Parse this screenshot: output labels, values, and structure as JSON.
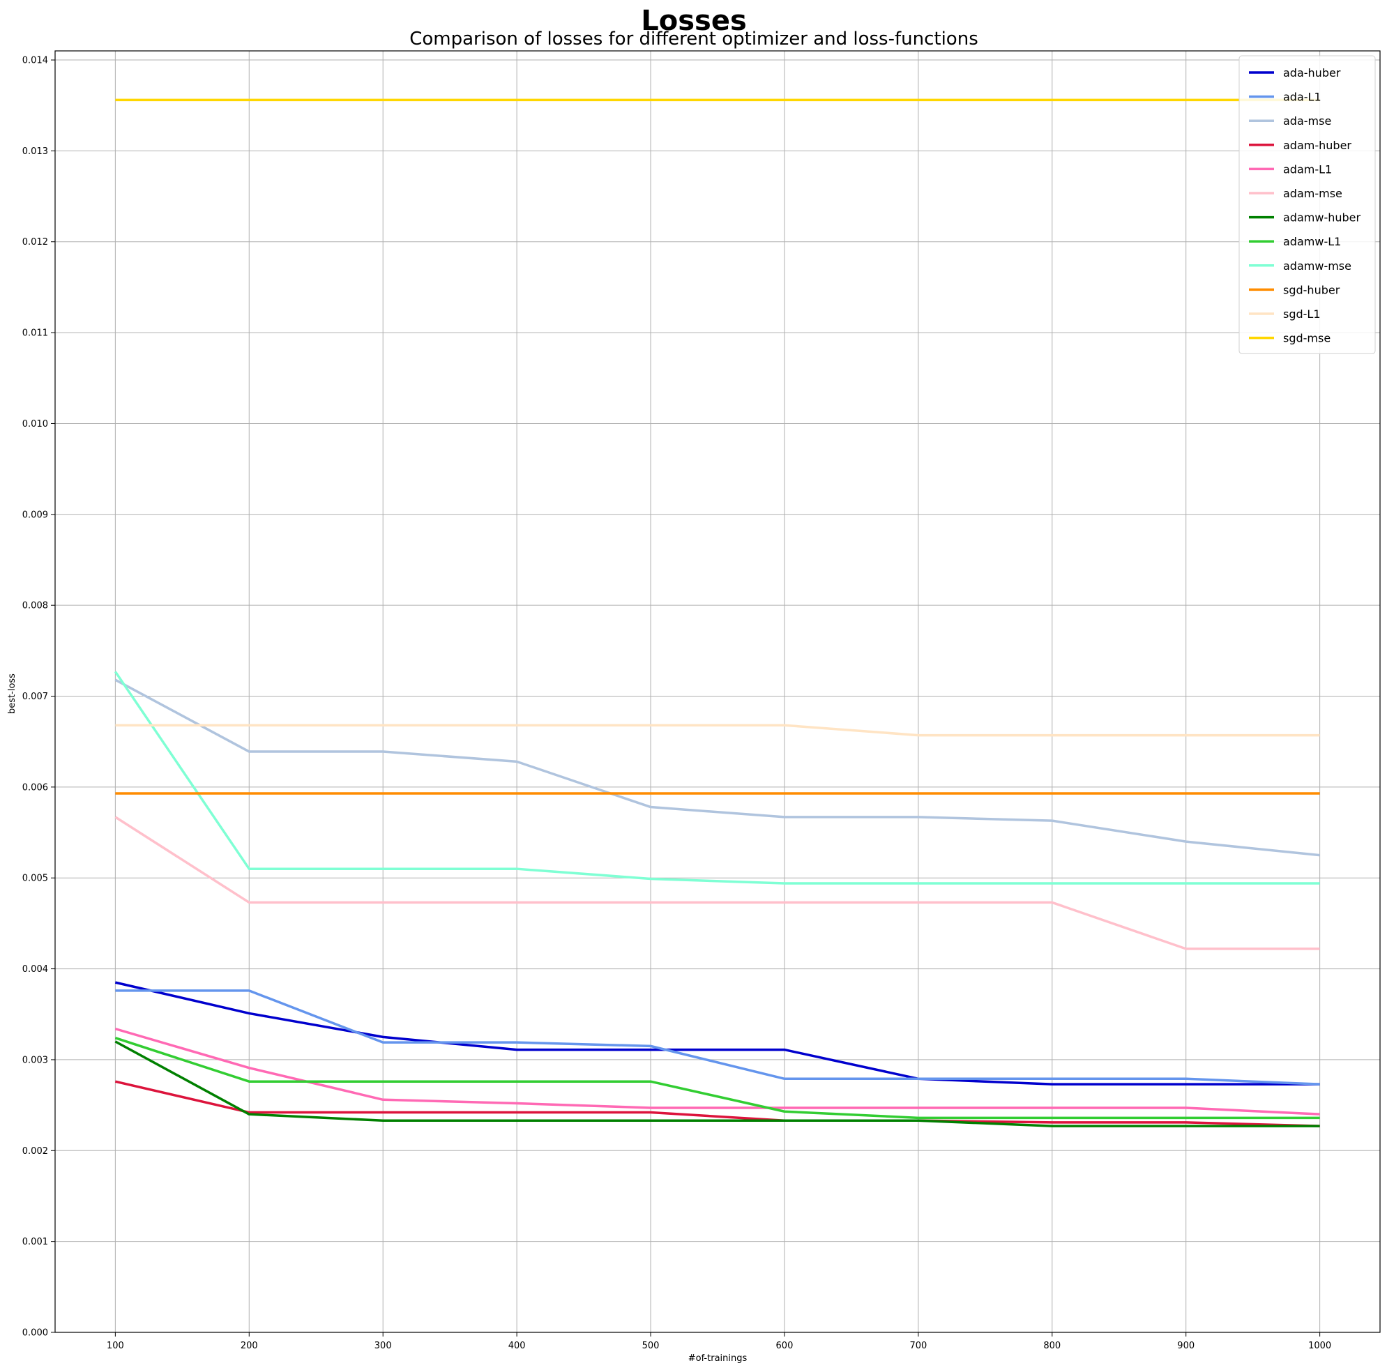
{
  "chart_data": {
    "type": "line",
    "title": "Losses",
    "subtitle": "Comparison of losses for different optimizer and loss-functions",
    "xlabel": "#of-trainings",
    "ylabel": "best-loss",
    "x": [
      100,
      200,
      300,
      400,
      500,
      600,
      700,
      800,
      900,
      1000
    ],
    "xlim": [
      55,
      1045
    ],
    "ylim": [
      0,
      0.0141
    ],
    "x_ticks": [
      "100",
      "200",
      "300",
      "400",
      "500",
      "600",
      "700",
      "800",
      "900",
      "1000"
    ],
    "y_ticks": [
      "0.000",
      "0.001",
      "0.002",
      "0.003",
      "0.004",
      "0.005",
      "0.006",
      "0.007",
      "0.008",
      "0.009",
      "0.010",
      "0.011",
      "0.012",
      "0.013",
      "0.014"
    ],
    "grid": true,
    "legend_position": "top-right",
    "series": [
      {
        "name": "ada-huber",
        "color": "#0000cd",
        "values": [
          0.00385,
          0.00351,
          0.00325,
          0.00311,
          0.00311,
          0.00311,
          0.00279,
          0.00273,
          0.00273,
          0.00273
        ]
      },
      {
        "name": "ada-L1",
        "color": "#6495ed",
        "values": [
          0.00376,
          0.00376,
          0.00319,
          0.00319,
          0.00315,
          0.00279,
          0.00279,
          0.00279,
          0.00279,
          0.00273
        ]
      },
      {
        "name": "ada-mse",
        "color": "#b0c4de",
        "values": [
          0.00718,
          0.00639,
          0.00639,
          0.00628,
          0.00578,
          0.00567,
          0.00567,
          0.00563,
          0.0054,
          0.00525
        ]
      },
      {
        "name": "adam-huber",
        "color": "#dc143c",
        "values": [
          0.00276,
          0.00242,
          0.00242,
          0.00242,
          0.00242,
          0.00233,
          0.00233,
          0.00231,
          0.00231,
          0.00227
        ]
      },
      {
        "name": "adam-L1",
        "color": "#ff69b4",
        "values": [
          0.00334,
          0.00291,
          0.00256,
          0.00252,
          0.00247,
          0.00247,
          0.00247,
          0.00247,
          0.00247,
          0.0024
        ]
      },
      {
        "name": "adam-mse",
        "color": "#ffc0cb",
        "values": [
          0.00567,
          0.00473,
          0.00473,
          0.00473,
          0.00473,
          0.00473,
          0.00473,
          0.00473,
          0.00422,
          0.00422
        ]
      },
      {
        "name": "adamw-huber",
        "color": "#008000",
        "values": [
          0.0032,
          0.0024,
          0.00233,
          0.00233,
          0.00233,
          0.00233,
          0.00233,
          0.00227,
          0.00227,
          0.00227
        ]
      },
      {
        "name": "adamw-L1",
        "color": "#32cd32",
        "values": [
          0.00324,
          0.00276,
          0.00276,
          0.00276,
          0.00276,
          0.00243,
          0.00236,
          0.00236,
          0.00236,
          0.00236
        ]
      },
      {
        "name": "adamw-mse",
        "color": "#7fffd4",
        "values": [
          0.00727,
          0.0051,
          0.0051,
          0.0051,
          0.00499,
          0.00494,
          0.00494,
          0.00494,
          0.00494,
          0.00494
        ]
      },
      {
        "name": "sgd-huber",
        "color": "#ff8c00",
        "values": [
          0.00593,
          0.00593,
          0.00593,
          0.00593,
          0.00593,
          0.00593,
          0.00593,
          0.00593,
          0.00593,
          0.00593
        ]
      },
      {
        "name": "sgd-L1",
        "color": "#ffe4c4",
        "values": [
          0.00668,
          0.00668,
          0.00668,
          0.00668,
          0.00668,
          0.00668,
          0.00657,
          0.00657,
          0.00657,
          0.00657
        ]
      },
      {
        "name": "sgd-mse",
        "color": "#ffd700",
        "values": [
          0.01356,
          0.01356,
          0.01356,
          0.01356,
          0.01356,
          0.01356,
          0.01356,
          0.01356,
          0.01356,
          0.01356
        ]
      }
    ]
  }
}
